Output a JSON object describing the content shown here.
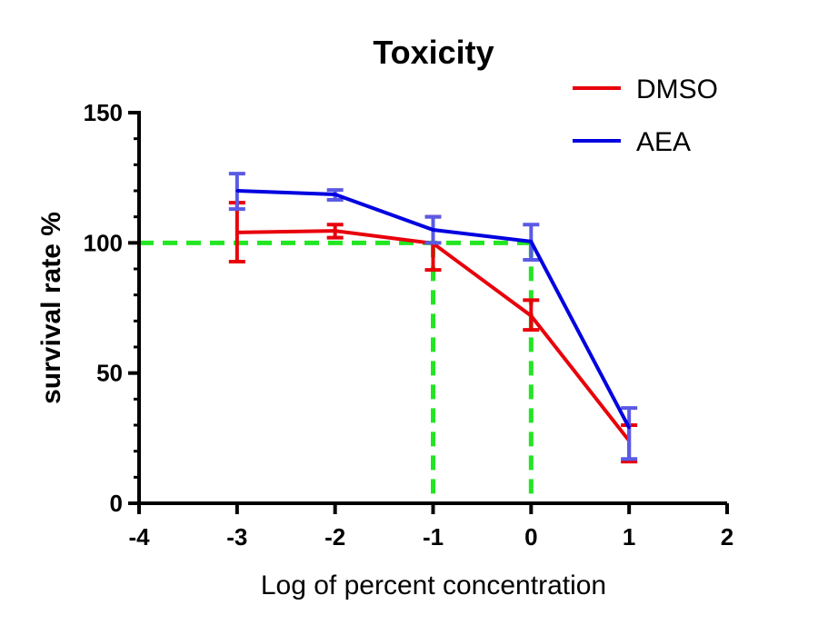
{
  "chart_data": {
    "type": "line",
    "title": "Toxicity",
    "xlabel": "Log of percent concentration",
    "ylabel": "survival rate %",
    "xlim": [
      -4,
      2
    ],
    "ylim": [
      0,
      150
    ],
    "xticks": [
      "-4",
      "-3",
      "-2",
      "-1",
      "0",
      "1",
      "2"
    ],
    "yticks": [
      "0",
      "50",
      "100",
      "150"
    ],
    "grid": false,
    "legend_position": "top-right",
    "x": [
      -3,
      -2,
      -1,
      0,
      1
    ],
    "series": [
      {
        "name": "DMSO",
        "color": "#e8000b",
        "errcolor": "#e8000b",
        "values": [
          104,
          104.6,
          99.8,
          72,
          24
        ],
        "err_low": [
          92.8,
          102,
          89.6,
          66.6,
          16
        ],
        "err_high": [
          115.4,
          107,
          110,
          78,
          30
        ]
      },
      {
        "name": "AEA",
        "color": "#0000e0",
        "errcolor": "#5a5ae6",
        "values": [
          120,
          118.6,
          105,
          100.5,
          29
        ],
        "err_low": [
          113,
          116.5,
          100,
          93.5,
          17
        ],
        "err_high": [
          126.6,
          120.3,
          110,
          107,
          36.6
        ]
      }
    ],
    "reference_lines": {
      "color": "#22e622",
      "horizontal_y": 100,
      "vertical_x": [
        -1,
        0
      ]
    }
  }
}
